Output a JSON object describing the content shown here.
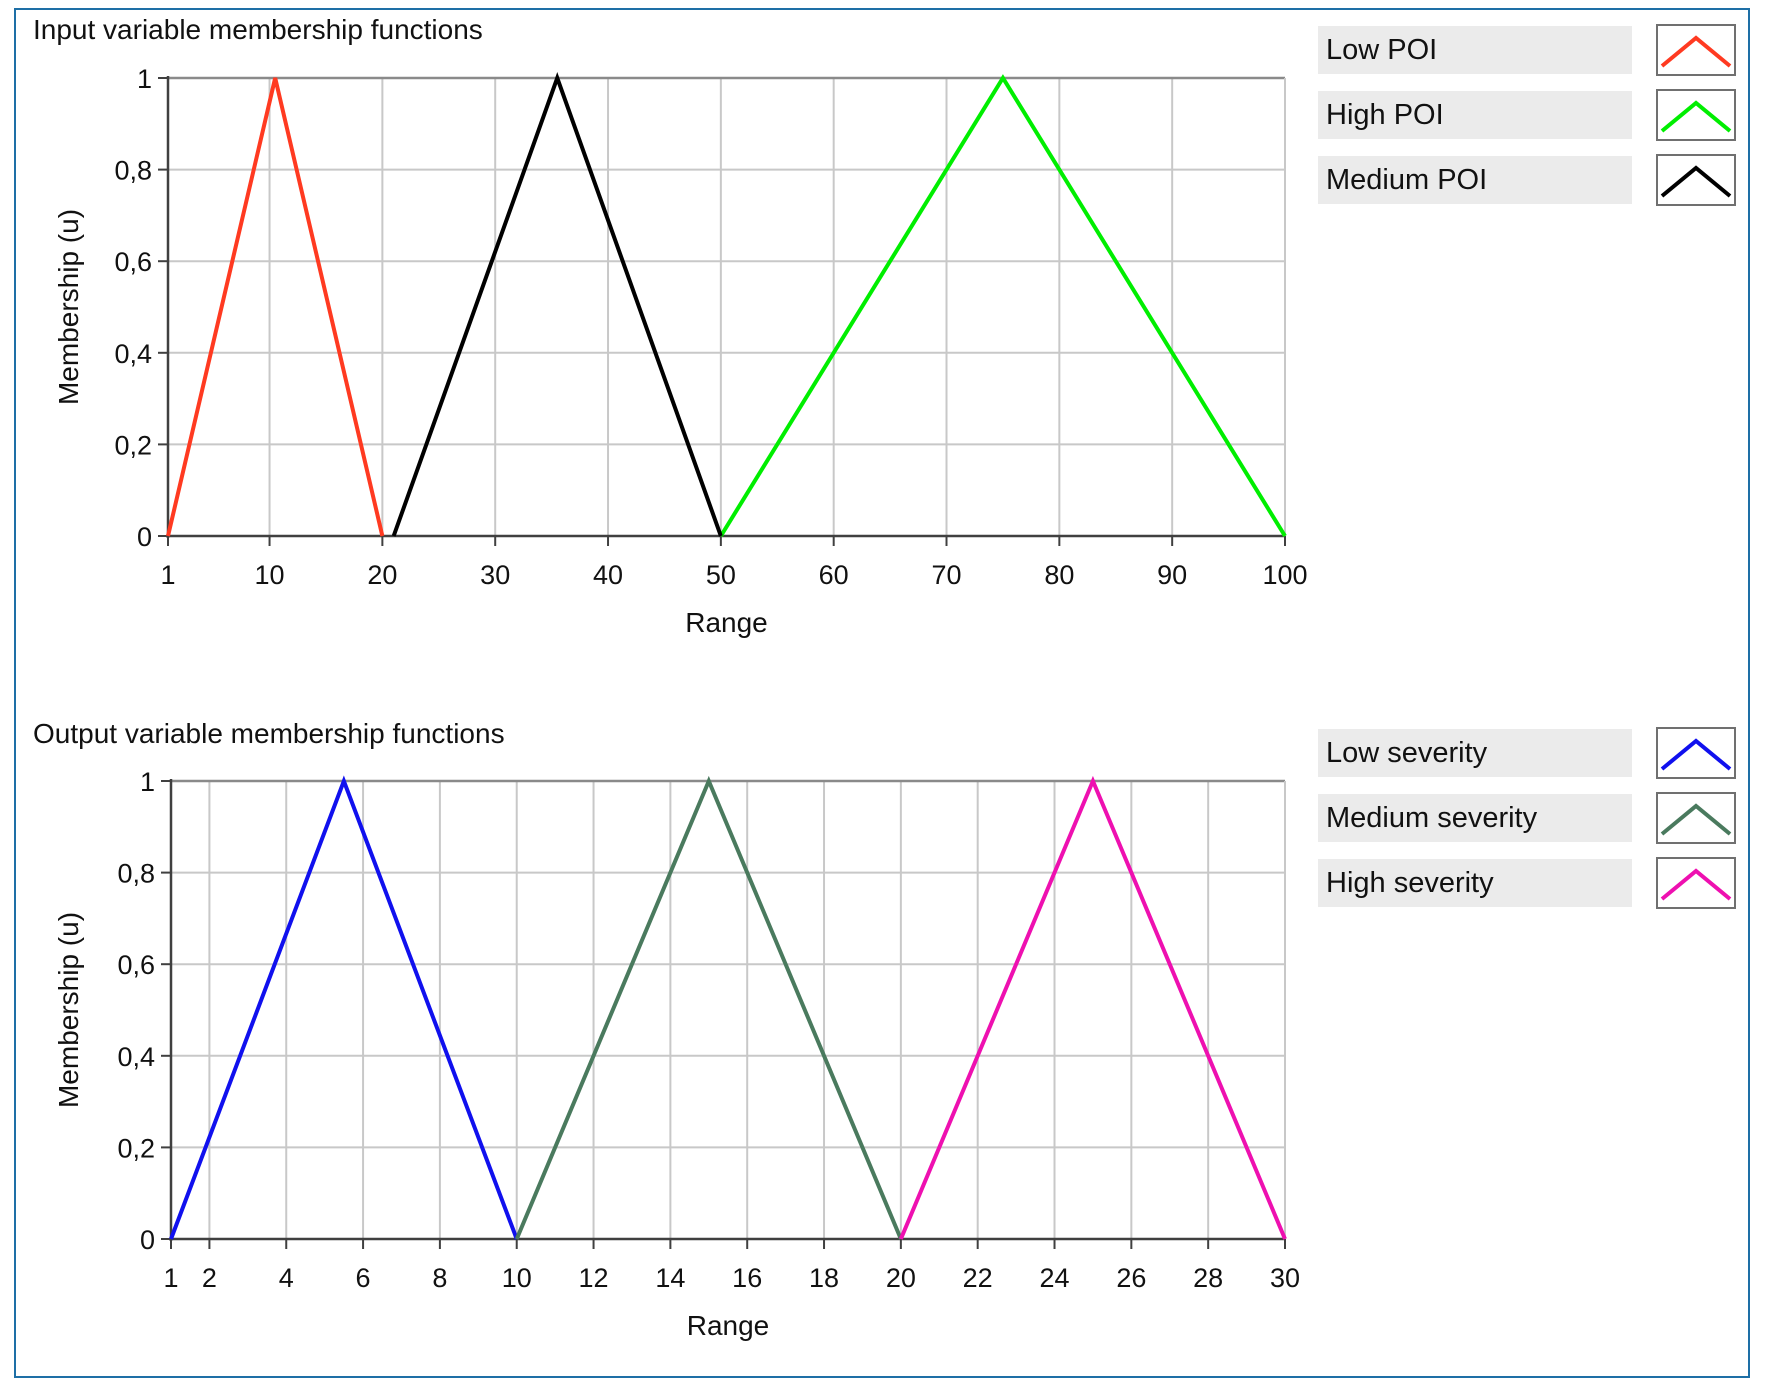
{
  "chart_data": [
    {
      "type": "line",
      "title": "Input variable membership functions",
      "xlabel": "Range",
      "ylabel": "Membership (u)",
      "xlim": [
        1,
        100
      ],
      "ylim": [
        0,
        1
      ],
      "x_ticks": [
        "1",
        "10",
        "20",
        "30",
        "40",
        "50",
        "60",
        "70",
        "80",
        "90",
        "100"
      ],
      "x_tick_values": [
        1,
        10,
        20,
        30,
        40,
        50,
        60,
        70,
        80,
        90,
        100
      ],
      "y_ticks": [
        "0",
        "0,2",
        "0,4",
        "0,6",
        "0,8",
        "1"
      ],
      "y_tick_values": [
        0,
        0.2,
        0.4,
        0.6,
        0.8,
        1
      ],
      "grid": true,
      "legend_position": "right",
      "series": [
        {
          "name": "Low POI",
          "color": "#ff3a21",
          "x": [
            1,
            10.5,
            20
          ],
          "y": [
            0,
            1,
            0
          ]
        },
        {
          "name": "High POI",
          "color": "#00ee00",
          "x": [
            50,
            75,
            100
          ],
          "y": [
            0,
            1,
            0
          ]
        },
        {
          "name": "Medium POI",
          "color": "#000000",
          "x": [
            21,
            35.5,
            50
          ],
          "y": [
            0,
            1,
            0
          ]
        }
      ]
    },
    {
      "type": "line",
      "title": "Output variable membership functions",
      "xlabel": "Range",
      "ylabel": "Membership (u)",
      "xlim": [
        1,
        30
      ],
      "ylim": [
        0,
        1
      ],
      "x_ticks": [
        "1",
        "2",
        "4",
        "6",
        "8",
        "10",
        "12",
        "14",
        "16",
        "18",
        "20",
        "22",
        "24",
        "26",
        "28",
        "30"
      ],
      "x_tick_values": [
        1,
        2,
        4,
        6,
        8,
        10,
        12,
        14,
        16,
        18,
        20,
        22,
        24,
        26,
        28,
        30
      ],
      "y_ticks": [
        "0",
        "0,2",
        "0,4",
        "0,6",
        "0,8",
        "1"
      ],
      "y_tick_values": [
        0,
        0.2,
        0.4,
        0.6,
        0.8,
        1
      ],
      "grid": true,
      "legend_position": "right",
      "series": [
        {
          "name": "Low severity",
          "color": "#1010ee",
          "x": [
            1,
            5.5,
            10
          ],
          "y": [
            0,
            1,
            0
          ]
        },
        {
          "name": "Medium severity",
          "color": "#4a7a5e",
          "x": [
            10,
            15,
            20
          ],
          "y": [
            0,
            1,
            0
          ]
        },
        {
          "name": "High severity",
          "color": "#ee10b0",
          "x": [
            20,
            25,
            30
          ],
          "y": [
            0,
            1,
            0
          ]
        }
      ]
    }
  ]
}
